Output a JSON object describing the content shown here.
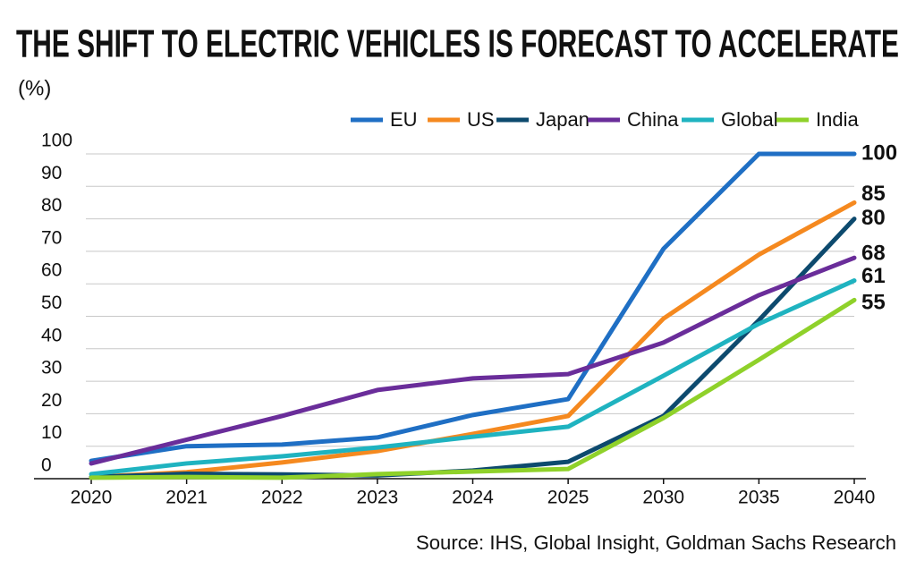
{
  "chart_data": {
    "type": "line",
    "title": "THE SHIFT TO ELECTRIC VEHICLES IS FORECAST TO ACCELERATE",
    "y_label": "(%)",
    "source": "Source: IHS, Global Insight, Goldman Sachs Research",
    "categories": [
      "2020",
      "2021",
      "2022",
      "2023",
      "2024",
      "2025",
      "2030",
      "2035",
      "2040"
    ],
    "series": [
      {
        "name": "EU",
        "color": "#1f6fc4",
        "values": [
          5.5,
          10,
          10.5,
          12.7,
          19.6,
          24.5,
          70.8,
          100,
          100
        ]
      },
      {
        "name": "US",
        "color": "#f5891f",
        "values": [
          0.5,
          2,
          5,
          8.5,
          13.8,
          19.3,
          49.3,
          69,
          85
        ]
      },
      {
        "name": "Japan",
        "color": "#0d4a6e",
        "values": [
          0.5,
          1.5,
          1.3,
          1,
          2.5,
          5.2,
          19.3,
          48.8,
          80
        ]
      },
      {
        "name": "China",
        "color": "#6a2d9a",
        "values": [
          4.7,
          12,
          19.3,
          27.3,
          30.9,
          32.2,
          41.9,
          56.5,
          68
        ]
      },
      {
        "name": "Global",
        "color": "#1fb3c0",
        "values": [
          1.4,
          4.7,
          6.9,
          9.6,
          12.9,
          16,
          31.7,
          47.7,
          61
        ]
      },
      {
        "name": "India",
        "color": "#8fd12a",
        "values": [
          0.3,
          0.5,
          0.3,
          1.4,
          2.2,
          3,
          18.7,
          36.6,
          55
        ]
      }
    ],
    "ylim": [
      0,
      100
    ],
    "yticks": [
      0,
      10,
      20,
      30,
      40,
      50,
      60,
      70,
      80,
      90,
      100
    ],
    "grid": true
  }
}
